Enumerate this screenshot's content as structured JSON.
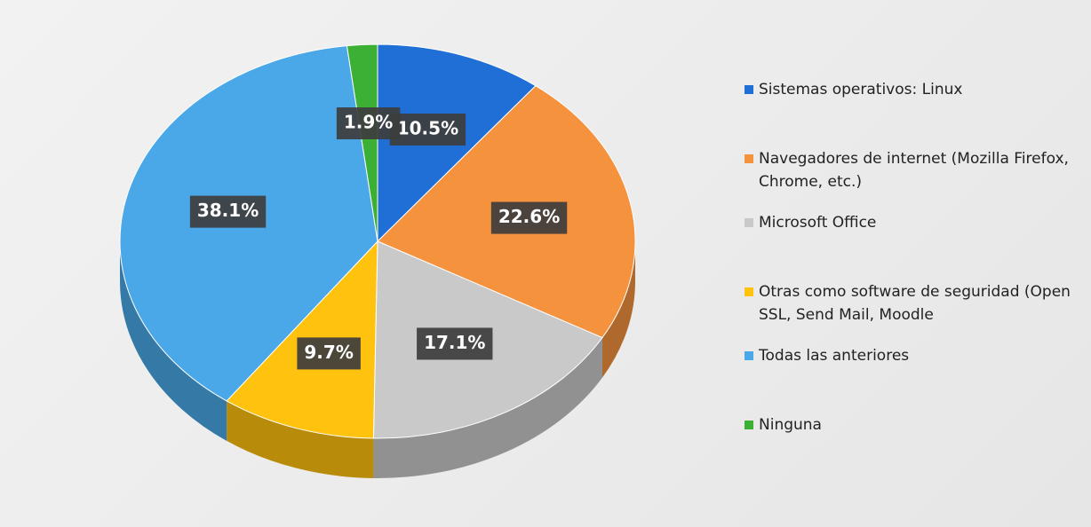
{
  "chart_data": {
    "type": "pie",
    "categories": [
      "Sistemas operativos: Linux",
      "Navegadores de internet (Mozilla Firefox, Chrome, etc.)",
      "Microsoft Office",
      "Otras como software de seguridad (Open SSL, Send Mail, Moodle",
      "Todas las anteriores",
      "Ninguna"
    ],
    "values": [
      10.5,
      22.6,
      17.1,
      9.7,
      38.1,
      1.9
    ],
    "value_labels": [
      "10.5%",
      "22.6%",
      "17.1%",
      "9.7%",
      "38.1%",
      "1.9%"
    ],
    "colors": [
      "#1f6fd6",
      "#f5923e",
      "#c9c9c9",
      "#ffc20e",
      "#4aa8e8",
      "#3cb034"
    ],
    "legend": "right"
  }
}
